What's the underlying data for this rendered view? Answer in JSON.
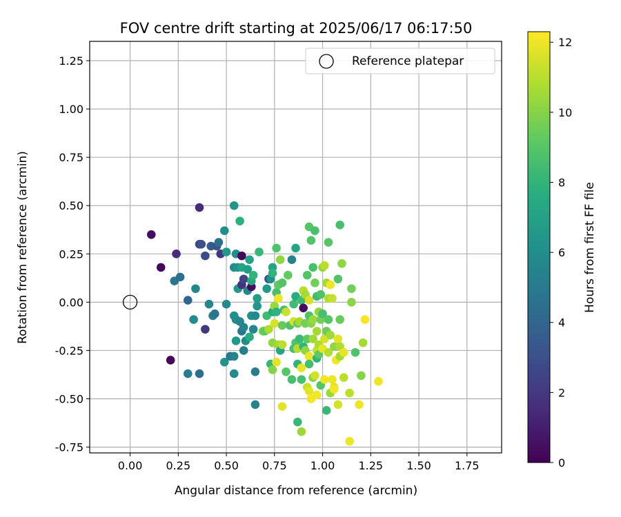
{
  "chart_data": {
    "type": "scatter",
    "title": "FOV centre drift starting at 2025/06/17 06:17:50",
    "xlabel": "Angular distance from reference (arcmin)",
    "ylabel": "Rotation from reference (arcmin)",
    "xlim": [
      -0.21,
      1.93
    ],
    "ylim": [
      -0.78,
      1.35
    ],
    "xticks": [
      "0.00",
      "0.25",
      "0.50",
      "0.75",
      "1.00",
      "1.25",
      "1.50",
      "1.75"
    ],
    "yticks": [
      "-0.75",
      "-0.50",
      "-0.25",
      "0.00",
      "0.25",
      "0.50",
      "0.75",
      "1.00",
      "1.25"
    ],
    "grid": true,
    "legend": {
      "placement": "top-right",
      "entries": [
        "Reference platepar"
      ]
    },
    "reference_point": {
      "x": 0.0,
      "y": 0.0
    },
    "colorbar": {
      "label": "Hours from first FF file",
      "colormap": "viridis",
      "range": [
        0,
        12.3
      ],
      "ticks": [
        "0",
        "2",
        "4",
        "6",
        "8",
        "10",
        "12"
      ]
    },
    "points": [
      {
        "x": 0.11,
        "y": 0.35,
        "h": 0.5
      },
      {
        "x": 0.16,
        "y": 0.18,
        "h": 0.3
      },
      {
        "x": 0.21,
        "y": -0.3,
        "h": 0.2
      },
      {
        "x": 0.24,
        "y": 0.25,
        "h": 1.5
      },
      {
        "x": 0.23,
        "y": 0.11,
        "h": 4.8
      },
      {
        "x": 0.26,
        "y": 0.13,
        "h": 4.5
      },
      {
        "x": 0.3,
        "y": 0.01,
        "h": 4.0
      },
      {
        "x": 0.3,
        "y": -0.37,
        "h": 5.2
      },
      {
        "x": 0.36,
        "y": 0.49,
        "h": 1.5
      },
      {
        "x": 0.36,
        "y": -0.37,
        "h": 4.5
      },
      {
        "x": 0.34,
        "y": 0.07,
        "h": 5.6
      },
      {
        "x": 0.33,
        "y": -0.09,
        "h": 5.8
      },
      {
        "x": 0.36,
        "y": 0.3,
        "h": 2.5
      },
      {
        "x": 0.37,
        "y": 0.3,
        "h": 3.0
      },
      {
        "x": 0.39,
        "y": 0.24,
        "h": 2.8
      },
      {
        "x": 0.39,
        "y": -0.14,
        "h": 2.0
      },
      {
        "x": 0.41,
        "y": -0.01,
        "h": 5.6
      },
      {
        "x": 0.42,
        "y": 0.29,
        "h": 3.5
      },
      {
        "x": 0.43,
        "y": -0.07,
        "h": 5.2
      },
      {
        "x": 0.44,
        "y": -0.06,
        "h": 4.8
      },
      {
        "x": 0.45,
        "y": 0.29,
        "h": 3.2
      },
      {
        "x": 0.46,
        "y": 0.31,
        "h": 4.5
      },
      {
        "x": 0.47,
        "y": 0.25,
        "h": 2.0
      },
      {
        "x": 0.49,
        "y": 0.37,
        "h": 6.0
      },
      {
        "x": 0.5,
        "y": 0.26,
        "h": 6.5
      },
      {
        "x": 0.49,
        "y": -0.31,
        "h": 6.2
      },
      {
        "x": 0.5,
        "y": -0.01,
        "h": 5.8
      },
      {
        "x": 0.52,
        "y": -0.28,
        "h": 4.8
      },
      {
        "x": 0.54,
        "y": -0.28,
        "h": 5.5
      },
      {
        "x": 0.54,
        "y": -0.37,
        "h": 5.7
      },
      {
        "x": 0.54,
        "y": 0.5,
        "h": 6.3
      },
      {
        "x": 0.55,
        "y": 0.25,
        "h": 6.0
      },
      {
        "x": 0.54,
        "y": 0.18,
        "h": 5.8
      },
      {
        "x": 0.54,
        "y": -0.07,
        "h": 6.1
      },
      {
        "x": 0.55,
        "y": -0.09,
        "h": 5.9
      },
      {
        "x": 0.55,
        "y": -0.2,
        "h": 6.6
      },
      {
        "x": 0.56,
        "y": 0.18,
        "h": 6.2
      },
      {
        "x": 0.56,
        "y": 0.07,
        "h": 6.5
      },
      {
        "x": 0.57,
        "y": -0.1,
        "h": 5.6
      },
      {
        "x": 0.57,
        "y": 0.42,
        "h": 7.8
      },
      {
        "x": 0.58,
        "y": 0.24,
        "h": 0.2
      },
      {
        "x": 0.58,
        "y": 0.09,
        "h": 1.8
      },
      {
        "x": 0.58,
        "y": 0.18,
        "h": 7.2
      },
      {
        "x": 0.59,
        "y": 0.12,
        "h": 2.5
      },
      {
        "x": 0.58,
        "y": -0.15,
        "h": 4.8
      },
      {
        "x": 0.59,
        "y": -0.13,
        "h": 5.5
      },
      {
        "x": 0.59,
        "y": -0.25,
        "h": 5.2
      },
      {
        "x": 0.6,
        "y": -0.2,
        "h": 5.8
      },
      {
        "x": 0.61,
        "y": 0.06,
        "h": 5.6
      },
      {
        "x": 0.61,
        "y": 0.17,
        "h": 6.8
      },
      {
        "x": 0.62,
        "y": 0.22,
        "h": 7.0
      },
      {
        "x": 0.62,
        "y": -0.18,
        "h": 7.6
      },
      {
        "x": 0.63,
        "y": 0.08,
        "h": 0.3
      },
      {
        "x": 0.63,
        "y": 0.11,
        "h": 7.4
      },
      {
        "x": 0.63,
        "y": -0.07,
        "h": 6.2
      },
      {
        "x": 0.64,
        "y": -0.14,
        "h": 5.6
      },
      {
        "x": 0.64,
        "y": 0.14,
        "h": 8.0
      },
      {
        "x": 0.65,
        "y": -0.36,
        "h": 5.0
      },
      {
        "x": 0.65,
        "y": -0.53,
        "h": 5.4
      },
      {
        "x": 0.65,
        "y": -0.07,
        "h": 5.8
      },
      {
        "x": 0.66,
        "y": -0.02,
        "h": 6.3
      },
      {
        "x": 0.66,
        "y": 0.02,
        "h": 6.8
      },
      {
        "x": 0.67,
        "y": 0.26,
        "h": 8.2
      },
      {
        "x": 0.69,
        "y": -0.15,
        "h": 9.8
      },
      {
        "x": 0.7,
        "y": -0.15,
        "h": 9.2
      },
      {
        "x": 0.71,
        "y": -0.07,
        "h": 8.4
      },
      {
        "x": 0.71,
        "y": 0.07,
        "h": 6.6
      },
      {
        "x": 0.72,
        "y": 0.12,
        "h": 2.8
      },
      {
        "x": 0.72,
        "y": -0.14,
        "h": 10.8
      },
      {
        "x": 0.73,
        "y": 0.12,
        "h": 6.1
      },
      {
        "x": 0.73,
        "y": -0.32,
        "h": 8.2
      },
      {
        "x": 0.74,
        "y": 0.18,
        "h": 7.0
      },
      {
        "x": 0.74,
        "y": -0.21,
        "h": 10.2
      },
      {
        "x": 0.74,
        "y": -0.05,
        "h": 7.5
      },
      {
        "x": 0.74,
        "y": 0.15,
        "h": 8.0
      },
      {
        "x": 0.74,
        "y": -0.35,
        "h": 10.0
      },
      {
        "x": 0.75,
        "y": -0.11,
        "h": 11.6
      },
      {
        "x": 0.75,
        "y": -0.02,
        "h": 10.4
      },
      {
        "x": 0.76,
        "y": 0.28,
        "h": 8.8
      },
      {
        "x": 0.76,
        "y": 0.05,
        "h": 8.6
      },
      {
        "x": 0.76,
        "y": -0.05,
        "h": 7.9
      },
      {
        "x": 0.76,
        "y": -0.31,
        "h": 11.8
      },
      {
        "x": 0.77,
        "y": -0.22,
        "h": 10.6
      },
      {
        "x": 0.77,
        "y": 0.02,
        "h": 12.0
      },
      {
        "x": 0.77,
        "y": 0.09,
        "h": 9.2
      },
      {
        "x": 0.78,
        "y": -0.25,
        "h": 7.2
      },
      {
        "x": 0.78,
        "y": 0.22,
        "h": 10.2
      },
      {
        "x": 0.79,
        "y": -0.22,
        "h": 11.0
      },
      {
        "x": 0.79,
        "y": -0.12,
        "h": 9.4
      },
      {
        "x": 0.79,
        "y": -0.54,
        "h": 11.8
      },
      {
        "x": 0.79,
        "y": 0.1,
        "h": 8.9
      },
      {
        "x": 0.8,
        "y": -0.04,
        "h": 8.4
      },
      {
        "x": 0.81,
        "y": -0.05,
        "h": 11.3
      },
      {
        "x": 0.81,
        "y": -0.36,
        "h": 9.0
      },
      {
        "x": 0.82,
        "y": 0.14,
        "h": 9.3
      },
      {
        "x": 0.83,
        "y": -0.12,
        "h": 8.8
      },
      {
        "x": 0.84,
        "y": 0.22,
        "h": 5.4
      },
      {
        "x": 0.84,
        "y": -0.4,
        "h": 8.6
      },
      {
        "x": 0.85,
        "y": -0.01,
        "h": 8.4
      },
      {
        "x": 0.85,
        "y": -0.24,
        "h": 8.6
      },
      {
        "x": 0.85,
        "y": -0.1,
        "h": 11.5
      },
      {
        "x": 0.86,
        "y": 0.28,
        "h": 7.2
      },
      {
        "x": 0.86,
        "y": 0.03,
        "h": 7.6
      },
      {
        "x": 0.86,
        "y": -0.21,
        "h": 8.8
      },
      {
        "x": 0.87,
        "y": -0.62,
        "h": 8.2
      },
      {
        "x": 0.87,
        "y": -0.11,
        "h": 9.5
      },
      {
        "x": 0.87,
        "y": -0.32,
        "h": 8.0
      },
      {
        "x": 0.87,
        "y": -0.24,
        "h": 10.9
      },
      {
        "x": 0.88,
        "y": -0.1,
        "h": 10.6
      },
      {
        "x": 0.88,
        "y": -0.19,
        "h": 8.3
      },
      {
        "x": 0.89,
        "y": -0.34,
        "h": 11.9
      },
      {
        "x": 0.89,
        "y": 0.01,
        "h": 8.4
      },
      {
        "x": 0.89,
        "y": -0.4,
        "h": 8.6
      },
      {
        "x": 0.89,
        "y": -0.67,
        "h": 10.4
      },
      {
        "x": 0.9,
        "y": -0.03,
        "h": 0.4
      },
      {
        "x": 0.9,
        "y": -0.23,
        "h": 8.0
      },
      {
        "x": 0.9,
        "y": 0.06,
        "h": 11.0
      },
      {
        "x": 0.91,
        "y": 0.04,
        "h": 10.6
      },
      {
        "x": 0.91,
        "y": -0.11,
        "h": 9.6
      },
      {
        "x": 0.91,
        "y": -0.25,
        "h": 10.2
      },
      {
        "x": 0.92,
        "y": 0.14,
        "h": 8.9
      },
      {
        "x": 0.92,
        "y": -0.19,
        "h": 9.2
      },
      {
        "x": 0.92,
        "y": -0.44,
        "h": 11.3
      },
      {
        "x": 0.93,
        "y": 0.39,
        "h": 9.0
      },
      {
        "x": 0.93,
        "y": -0.28,
        "h": 12.0
      },
      {
        "x": 0.93,
        "y": -0.32,
        "h": 8.5
      },
      {
        "x": 0.93,
        "y": -0.07,
        "h": 8.8
      },
      {
        "x": 0.93,
        "y": 0.01,
        "h": 11.6
      },
      {
        "x": 0.93,
        "y": -0.46,
        "h": 11.8
      },
      {
        "x": 0.94,
        "y": 0.32,
        "h": 8.8
      },
      {
        "x": 0.94,
        "y": -0.11,
        "h": 10.0
      },
      {
        "x": 0.94,
        "y": -0.5,
        "h": 12.1
      },
      {
        "x": 0.95,
        "y": -0.19,
        "h": 10.5
      },
      {
        "x": 0.95,
        "y": -0.39,
        "h": 10.0
      },
      {
        "x": 0.95,
        "y": 0.18,
        "h": 8.6
      },
      {
        "x": 0.95,
        "y": -0.09,
        "h": 10.4
      },
      {
        "x": 0.96,
        "y": 0.37,
        "h": 8.6
      },
      {
        "x": 0.96,
        "y": 0.1,
        "h": 9.6
      },
      {
        "x": 0.96,
        "y": -0.38,
        "h": 11.4
      },
      {
        "x": 0.97,
        "y": -0.25,
        "h": 11.2
      },
      {
        "x": 0.97,
        "y": -0.48,
        "h": 12.1
      },
      {
        "x": 0.97,
        "y": -0.15,
        "h": 10.6
      },
      {
        "x": 0.97,
        "y": 0.03,
        "h": 8.4
      },
      {
        "x": 0.97,
        "y": -0.29,
        "h": 7.9
      },
      {
        "x": 0.98,
        "y": -0.05,
        "h": 10.2
      },
      {
        "x": 0.98,
        "y": -0.27,
        "h": 9.2
      },
      {
        "x": 0.98,
        "y": -0.22,
        "h": 10.8
      },
      {
        "x": 0.99,
        "y": 0.04,
        "h": 8.8
      },
      {
        "x": 0.99,
        "y": -0.09,
        "h": 9.6
      },
      {
        "x": 0.99,
        "y": -0.43,
        "h": 9.0
      },
      {
        "x": 1.0,
        "y": -0.06,
        "h": 8.6
      },
      {
        "x": 1.0,
        "y": 0.18,
        "h": 10.3
      },
      {
        "x": 1.0,
        "y": -0.24,
        "h": 11.9
      },
      {
        "x": 1.01,
        "y": 0.19,
        "h": 11.0
      },
      {
        "x": 1.01,
        "y": -0.19,
        "h": 11.5
      },
      {
        "x": 1.01,
        "y": -0.4,
        "h": 12.0
      },
      {
        "x": 1.02,
        "y": 0.1,
        "h": 10.6
      },
      {
        "x": 1.02,
        "y": -0.56,
        "h": 8.2
      },
      {
        "x": 1.02,
        "y": -0.15,
        "h": 9.5
      },
      {
        "x": 1.03,
        "y": 0.31,
        "h": 9.0
      },
      {
        "x": 1.03,
        "y": -0.26,
        "h": 10.9
      },
      {
        "x": 1.03,
        "y": -0.09,
        "h": 9.0
      },
      {
        "x": 1.03,
        "y": 0.02,
        "h": 10.8
      },
      {
        "x": 1.04,
        "y": 0.09,
        "h": 12.0
      },
      {
        "x": 1.04,
        "y": -0.17,
        "h": 10.5
      },
      {
        "x": 1.04,
        "y": -0.47,
        "h": 10.4
      },
      {
        "x": 1.05,
        "y": -0.4,
        "h": 12.0
      },
      {
        "x": 1.05,
        "y": 0.02,
        "h": 11.2
      },
      {
        "x": 1.06,
        "y": -0.23,
        "h": 10.2
      },
      {
        "x": 1.06,
        "y": -0.44,
        "h": 11.7
      },
      {
        "x": 1.06,
        "y": -0.45,
        "h": 12.1
      },
      {
        "x": 1.07,
        "y": -0.3,
        "h": 12.1
      },
      {
        "x": 1.08,
        "y": 0.12,
        "h": 8.9
      },
      {
        "x": 1.08,
        "y": -0.19,
        "h": 11.8
      },
      {
        "x": 1.08,
        "y": -0.53,
        "h": 11.5
      },
      {
        "x": 1.09,
        "y": 0.4,
        "h": 8.6
      },
      {
        "x": 1.09,
        "y": -0.09,
        "h": 9.4
      },
      {
        "x": 1.09,
        "y": -0.23,
        "h": 10.8
      },
      {
        "x": 1.09,
        "y": -0.28,
        "h": 10.6
      },
      {
        "x": 1.1,
        "y": 0.2,
        "h": 10.2
      },
      {
        "x": 1.11,
        "y": -0.39,
        "h": 11.0
      },
      {
        "x": 1.11,
        "y": -0.26,
        "h": 11.9
      },
      {
        "x": 1.14,
        "y": -0.47,
        "h": 11.0
      },
      {
        "x": 1.14,
        "y": -0.72,
        "h": 12.0
      },
      {
        "x": 1.15,
        "y": 0.07,
        "h": 9.6
      },
      {
        "x": 1.15,
        "y": 0.0,
        "h": 10.1
      },
      {
        "x": 1.17,
        "y": -0.26,
        "h": 8.8
      },
      {
        "x": 1.19,
        "y": -0.53,
        "h": 12.0
      },
      {
        "x": 1.2,
        "y": -0.38,
        "h": 10.0
      },
      {
        "x": 1.21,
        "y": -0.21,
        "h": 10.6
      },
      {
        "x": 1.22,
        "y": -0.09,
        "h": 12.2
      },
      {
        "x": 1.29,
        "y": -0.41,
        "h": 12.0
      }
    ]
  }
}
